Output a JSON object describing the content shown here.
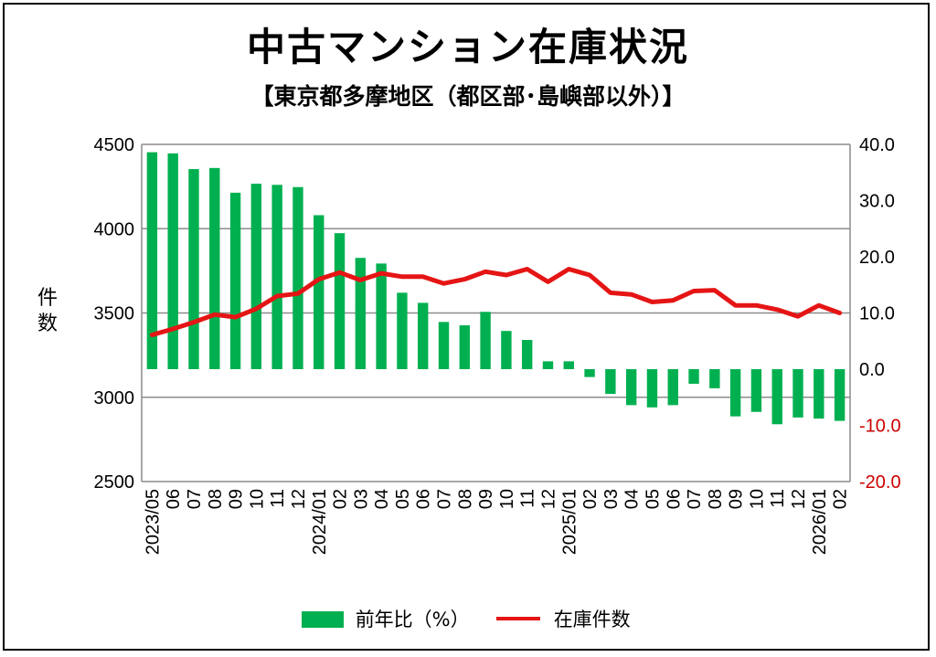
{
  "title": "中古マンション在庫状況",
  "subtitle": "【東京都多摩地区（都区部･島嶼部以外）】",
  "chart_data": {
    "type": "bar+line",
    "ylabel": "件数",
    "left_axis": {
      "min": 2500,
      "max": 4500,
      "ticks": [
        "4500",
        "4000",
        "3500",
        "3000",
        "2500"
      ]
    },
    "right_axis": {
      "min": -20,
      "max": 40,
      "ticks": [
        "40.0",
        "30.0",
        "20.0",
        "10.0",
        "0.0",
        "-10.0",
        "-20.0"
      ]
    },
    "grid": true,
    "legend_position": "bottom",
    "categories": [
      "2023/05",
      "06",
      "07",
      "08",
      "09",
      "10",
      "11",
      "12",
      "2024/01",
      "02",
      "03",
      "04",
      "05",
      "06",
      "07",
      "08",
      "09",
      "10",
      "11",
      "12",
      "2025/01",
      "02",
      "03",
      "04",
      "05",
      "06",
      "07",
      "08",
      "09",
      "10",
      "11",
      "12",
      "2026/01",
      "02"
    ],
    "series": [
      {
        "name": "前年比（%）",
        "type": "bar",
        "axis": "right",
        "color": "#00b050",
        "values": [
          38.6,
          38.4,
          35.6,
          35.8,
          31.4,
          33.0,
          32.8,
          32.4,
          27.4,
          24.2,
          19.8,
          18.8,
          13.6,
          11.8,
          8.4,
          7.8,
          10.2,
          6.8,
          5.2,
          1.4,
          1.4,
          -1.4,
          -4.4,
          -6.4,
          -6.8,
          -6.4,
          -2.6,
          -3.4,
          -8.4,
          -7.6,
          -9.8,
          -8.6,
          -8.8,
          -9.2
        ]
      },
      {
        "name": "在庫件数",
        "type": "line",
        "axis": "left",
        "color": "#e51515",
        "values": [
          3370,
          3405,
          3445,
          3490,
          3475,
          3525,
          3600,
          3615,
          3700,
          3740,
          3695,
          3735,
          3715,
          3715,
          3675,
          3700,
          3745,
          3725,
          3760,
          3685,
          3760,
          3725,
          3620,
          3610,
          3565,
          3575,
          3630,
          3635,
          3545,
          3545,
          3520,
          3480,
          3545,
          3500
        ]
      }
    ]
  }
}
